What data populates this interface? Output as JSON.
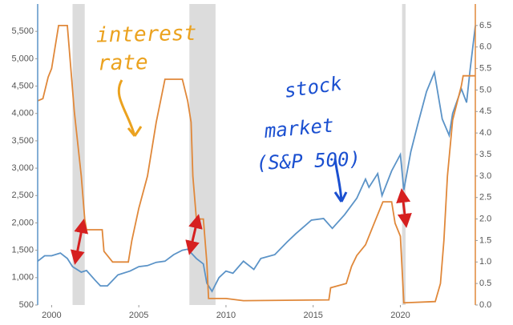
{
  "chart_data": {
    "type": "line",
    "xlim": [
      1999.2,
      2024.3
    ],
    "xticks": [
      2000,
      2005,
      2010,
      2015,
      2020
    ],
    "ylim": [
      500,
      6000
    ],
    "yticks": [
      500,
      {
        "value": 1000,
        "label": "1,000"
      },
      {
        "value": 1500,
        "label": "1,500"
      },
      {
        "value": 2000,
        "label": "2,000"
      },
      {
        "value": 2500,
        "label": "2,500"
      },
      {
        "value": 3000,
        "label": "3,000"
      },
      {
        "value": 3500,
        "label": "3,500"
      },
      {
        "value": 4000,
        "label": "4,000"
      },
      {
        "value": 4500,
        "label": "4,500"
      },
      {
        "value": 5000,
        "label": "5,000"
      },
      {
        "value": 5500,
        "label": "5,500"
      }
    ],
    "y2lim": [
      0,
      7
    ],
    "y2ticks": [
      {
        "value": 0,
        "label": "0.0"
      },
      0.5,
      {
        "value": 1,
        "label": "1.0"
      },
      1.5,
      {
        "value": 2,
        "label": "2.0"
      },
      2.5,
      {
        "value": 3,
        "label": "3.0"
      },
      3.5,
      {
        "value": 4,
        "label": "4.0"
      },
      4.5,
      {
        "value": 5,
        "label": "5.0"
      },
      5.5,
      {
        "value": 6,
        "label": "6.0"
      },
      6.5
    ],
    "shaded_ranges": [
      [
        2001.2,
        2001.9
      ],
      [
        2007.9,
        2009.4
      ],
      [
        2020.1,
        2020.3
      ]
    ],
    "shade_color": "#dcdcdc",
    "series": [
      {
        "label_lines": [
          "stock",
          "market",
          "(S&P 500)"
        ],
        "color": "#5b93c7",
        "x": [
          1999.2,
          1999.6,
          2000.0,
          2000.5,
          2000.9,
          2001.2,
          2001.7,
          2002.0,
          2002.5,
          2002.8,
          2003.2,
          2003.8,
          2004.5,
          2005.0,
          2005.5,
          2006.0,
          2006.5,
          2007.0,
          2007.5,
          2007.8,
          2008.3,
          2008.7,
          2008.9,
          2009.2,
          2009.6,
          2010.0,
          2010.4,
          2011.0,
          2011.6,
          2012.0,
          2012.8,
          2013.5,
          2014.0,
          2014.9,
          2015.6,
          2016.1,
          2016.8,
          2017.5,
          2018.0,
          2018.2,
          2018.7,
          2018.95,
          2019.5,
          2020.0,
          2020.2,
          2020.6,
          2021.0,
          2021.5,
          2021.95,
          2022.4,
          2022.8,
          2023.0,
          2023.5,
          2023.8,
          2024.0,
          2024.3
        ],
        "values": [
          1300,
          1400,
          1400,
          1450,
          1350,
          1200,
          1100,
          1130,
          950,
          850,
          850,
          1050,
          1120,
          1200,
          1220,
          1280,
          1300,
          1420,
          1500,
          1520,
          1350,
          1250,
          900,
          750,
          1000,
          1120,
          1080,
          1300,
          1150,
          1350,
          1420,
          1650,
          1800,
          2050,
          2080,
          1900,
          2150,
          2450,
          2800,
          2650,
          2900,
          2500,
          2950,
          3250,
          2600,
          3300,
          3800,
          4400,
          4750,
          3900,
          3600,
          4000,
          4450,
          4200,
          4800,
          5600
        ]
      },
      {
        "label_lines": [
          "interest",
          "rate"
        ],
        "color": "#e0883a",
        "axis": "y2",
        "x": [
          1999.2,
          1999.5,
          1999.8,
          2000.0,
          2000.4,
          2000.9,
          2001.0,
          2001.3,
          2001.7,
          2001.9,
          2002.0,
          2002.9,
          2003.0,
          2003.5,
          2004.4,
          2004.6,
          2005.0,
          2005.5,
          2006.0,
          2006.5,
          2007.5,
          2007.8,
          2008.0,
          2008.1,
          2008.3,
          2008.7,
          2008.9,
          2009.0,
          2010.0,
          2011.0,
          2015.9,
          2016.0,
          2016.9,
          2017.2,
          2017.5,
          2018.0,
          2018.5,
          2019.0,
          2019.5,
          2019.7,
          2020.0,
          2020.2,
          2022.0,
          2022.3,
          2022.5,
          2022.7,
          2023.0,
          2023.5,
          2023.6,
          2024.3
        ],
        "values": [
          4.75,
          4.8,
          5.3,
          5.5,
          6.5,
          6.5,
          6.0,
          4.5,
          3.0,
          2.0,
          1.75,
          1.75,
          1.25,
          1.0,
          1.0,
          1.5,
          2.25,
          3.0,
          4.25,
          5.25,
          5.25,
          4.75,
          4.25,
          3.0,
          2.0,
          2.0,
          1.0,
          0.15,
          0.15,
          0.1,
          0.12,
          0.4,
          0.5,
          0.9,
          1.15,
          1.4,
          1.9,
          2.4,
          2.4,
          1.9,
          1.6,
          0.05,
          0.08,
          0.5,
          1.5,
          3.0,
          4.3,
          5.1,
          5.33,
          5.33
        ]
      }
    ]
  }
}
